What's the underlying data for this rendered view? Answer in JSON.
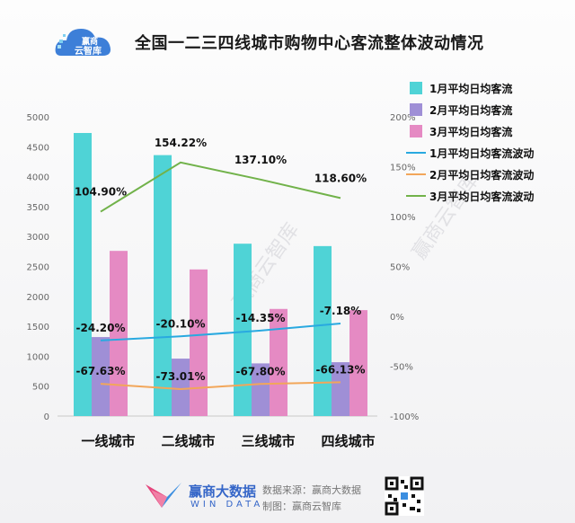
{
  "brand": {
    "logo_line1": "赢商",
    "logo_line2": "云智库",
    "footer_brand": "赢商大数据",
    "footer_brand_en": "WIN DATA",
    "source": "数据来源：赢商大数据",
    "maker": "制图：赢商云智库",
    "watermark": "赢商云智库"
  },
  "colors": {
    "bar1": "#4fd3d6",
    "bar2": "#9f8fd6",
    "bar3": "#e58ac3",
    "line1": "#29a9e0",
    "line2": "#f2a65a",
    "line3": "#71b24a"
  },
  "chart_data": {
    "type": "bar",
    "title": "全国一二三四线城市购物中心客流整体波动情况",
    "categories": [
      "一线城市",
      "二线城市",
      "三线城市",
      "四线城市"
    ],
    "left_axis": {
      "ylim": [
        0,
        5000
      ],
      "ticks": [
        "0",
        "500",
        "1000",
        "1500",
        "2000",
        "2500",
        "3000",
        "3500",
        "4000",
        "4500",
        "5000"
      ]
    },
    "right_axis": {
      "ylim": [
        -100,
        200
      ],
      "ticks": [
        "-100%",
        "-50%",
        "0%",
        "50%",
        "100%",
        "150%",
        "200%"
      ]
    },
    "series": [
      {
        "name": "1月平均日均客流",
        "kind": "bar",
        "values": [
          4730,
          4360,
          2880,
          2840
        ]
      },
      {
        "name": "2月平均日均客流",
        "kind": "bar",
        "values": [
          1320,
          960,
          880,
          900
        ]
      },
      {
        "name": "3月平均日均客流",
        "kind": "bar",
        "values": [
          2760,
          2450,
          1790,
          1770
        ]
      },
      {
        "name": "1月平均日均客流波动",
        "kind": "line",
        "axis": "right",
        "values": [
          -24.2,
          -20.1,
          -14.35,
          -7.18
        ],
        "labels": [
          "-24.20%",
          "-20.10%",
          "-14.35%",
          "-7.18%"
        ]
      },
      {
        "name": "2月平均日均客流波动",
        "kind": "line",
        "axis": "right",
        "values": [
          -67.63,
          -73.01,
          -67.8,
          -66.13
        ],
        "labels": [
          "-67.63%",
          "-73.01%",
          "-67.80%",
          "-66.13%"
        ]
      },
      {
        "name": "3月平均日均客流波动",
        "kind": "line",
        "axis": "right",
        "values": [
          104.9,
          154.22,
          137.1,
          118.6
        ],
        "labels": [
          "104.90%",
          "154.22%",
          "137.10%",
          "118.60%"
        ]
      }
    ],
    "legend_position": "right",
    "grid": false
  }
}
